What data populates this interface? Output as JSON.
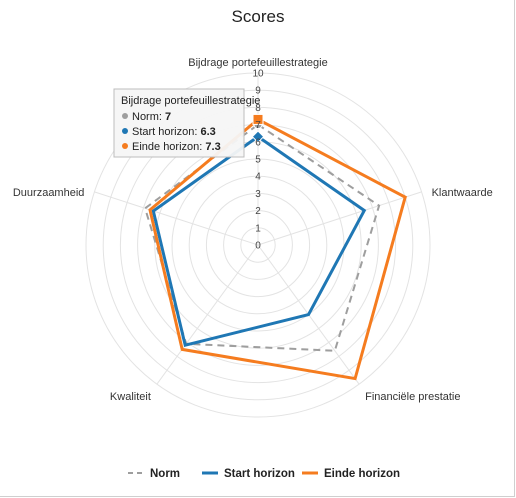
{
  "chart_data": {
    "type": "radar",
    "title": "Scores",
    "axes": [
      "Bijdrage portefeuillestrategie",
      "Klantwaarde",
      "Financiële prestatie",
      "Kwaliteit",
      "Duurzaamheid"
    ],
    "rlim": [
      0,
      10
    ],
    "ticks": [
      "0",
      "1",
      "2",
      "3",
      "4",
      "5",
      "6",
      "7",
      "8",
      "9",
      "10"
    ],
    "series": [
      {
        "name": "Norm",
        "values": [
          7,
          7.4,
          7.6,
          7.1,
          6.9
        ],
        "color": "#9e9e9e",
        "dash": true
      },
      {
        "name": "Start horizon",
        "values": [
          6.3,
          6.5,
          5.0,
          7.2,
          6.4
        ],
        "color": "#1f77b4",
        "dash": false
      },
      {
        "name": "Einde horizon",
        "values": [
          7.3,
          9.0,
          9.6,
          7.5,
          6.6
        ],
        "color": "#f57c1f",
        "dash": false
      }
    ],
    "legend": "bottom",
    "grid": true
  },
  "tooltip": {
    "title": "Bijdrage portefeuillestrategie",
    "rows": [
      {
        "label": "Norm:",
        "value": "7",
        "color": "#9e9e9e"
      },
      {
        "label": "Start horizon:",
        "value": "6.3",
        "color": "#1f77b4"
      },
      {
        "label": "Einde horizon:",
        "value": "7.3",
        "color": "#f57c1f"
      }
    ]
  }
}
